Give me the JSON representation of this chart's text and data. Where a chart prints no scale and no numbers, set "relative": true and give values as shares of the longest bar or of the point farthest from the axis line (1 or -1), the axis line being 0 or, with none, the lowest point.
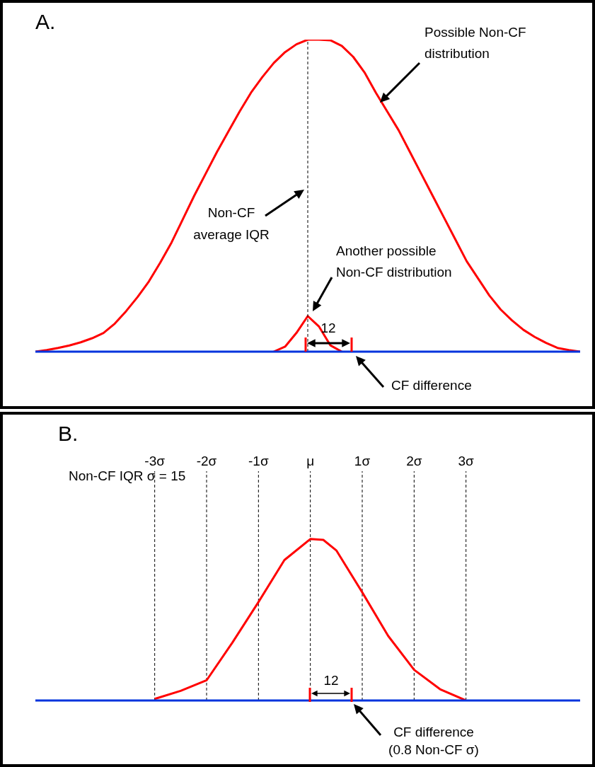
{
  "chart_data": [
    {
      "type": "line",
      "title": "A.",
      "relative": true,
      "tick_labels": false,
      "categories": [
        null,
        null,
        null,
        null,
        null,
        null,
        null,
        null,
        null,
        null,
        null,
        null,
        null,
        null,
        null,
        null,
        null,
        null,
        null,
        null,
        null,
        null,
        null,
        null,
        null,
        null,
        null,
        null,
        null,
        null,
        null,
        null,
        null,
        null,
        null,
        null,
        null,
        null,
        null,
        null,
        null,
        null,
        null,
        null,
        null,
        null,
        null,
        null,
        null
      ],
      "series": [
        {
          "color": "#ff0000",
          "values": [
            0,
            0.005,
            0.012,
            0.02,
            0.03,
            0.043,
            0.06,
            0.09,
            0.13,
            0.175,
            0.225,
            0.285,
            0.35,
            0.425,
            0.5,
            0.57,
            0.64,
            0.705,
            0.77,
            0.83,
            0.88,
            0.925,
            0.96,
            0.985,
            1,
            1,
            0.998,
            0.98,
            0.945,
            0.895,
            0.83,
            0.77,
            0.71,
            0.64,
            0.57,
            0.5,
            0.43,
            0.36,
            0.29,
            0.235,
            0.18,
            0.135,
            0.1,
            0.07,
            0.047,
            0.028,
            0.012,
            0.005,
            0
          ]
        },
        {
          "color": "#ff0000",
          "values": [
            null,
            null,
            null,
            null,
            null,
            null,
            null,
            null,
            null,
            null,
            null,
            null,
            null,
            null,
            null,
            null,
            null,
            null,
            null,
            null,
            null,
            0,
            0.016,
            0.06,
            0.114,
            0.08,
            0.02,
            0,
            null,
            null,
            null,
            null,
            null,
            null,
            null,
            null,
            null,
            null,
            null,
            null,
            null,
            null,
            null,
            null,
            null,
            null,
            null,
            null,
            null
          ]
        }
      ],
      "ref_lines": [
        {
          "axis": "x",
          "label": "Non-CF average IQR",
          "color": "#000000",
          "line_style": "dashed"
        }
      ],
      "annotations": [
        "Possible Non-CF distribution",
        "12",
        "CF difference",
        "Another possible Non-CF distribution"
      ]
    },
    {
      "type": "line",
      "title": "B.",
      "relative": true,
      "xlim": [
        -5.3,
        5.2
      ],
      "grid": "x",
      "tick_labels": "x",
      "xticks": [
        {
          "value": -3,
          "label": "-3σ"
        },
        {
          "value": -2,
          "label": "-2σ"
        },
        {
          "value": -1,
          "label": "-1σ"
        },
        {
          "value": 0,
          "label": "μ"
        },
        {
          "value": 1,
          "label": "1σ"
        },
        {
          "value": 2,
          "label": "2σ"
        },
        {
          "value": 3,
          "label": "3σ"
        }
      ],
      "series": [
        {
          "color": "#ff0000",
          "x": [
            -3,
            -2.5,
            -2,
            -1.5,
            -1,
            -0.5,
            0,
            0.25,
            0.5,
            1,
            1.5,
            2,
            2.5,
            3
          ],
          "values": [
            0.01,
            0.06,
            0.125,
            0.36,
            0.61,
            0.87,
            1,
            0.995,
            0.93,
            0.67,
            0.4,
            0.19,
            0.07,
            0
          ]
        }
      ],
      "annotations": [
        "Non-CF IQR σ = 15",
        "12",
        "CF difference (0.8 Non-CF σ)"
      ]
    }
  ]
}
